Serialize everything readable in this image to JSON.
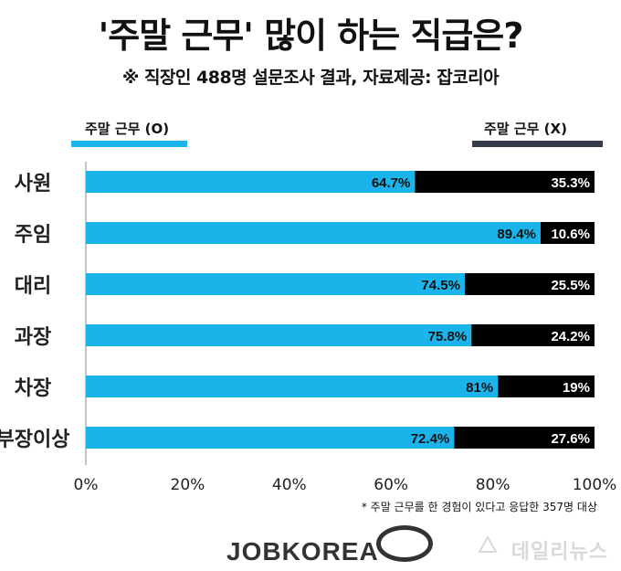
{
  "title": "'주말 근무' 많이 하는 직급은?",
  "subtitle": "※ 직장인 488명 설문조사 결과, 자료제공: 잡코리아",
  "legend": {
    "left_label": "주말 근무 (O)",
    "right_label": "주말 근무 (X)"
  },
  "colors": {
    "o": "#1ab4ea",
    "x": "#000000",
    "legend_x": "#353b48"
  },
  "chart_data": {
    "type": "bar",
    "stacked": true,
    "orientation": "horizontal",
    "categories": [
      "사원",
      "주임",
      "대리",
      "과장",
      "차장",
      "부장이상"
    ],
    "series": [
      {
        "name": "주말 근무 (O)",
        "values": [
          64.7,
          89.4,
          74.5,
          75.8,
          81,
          72.4
        ],
        "labels": [
          "64.7%",
          "89.4%",
          "74.5%",
          "75.8%",
          "81%",
          "72.4%"
        ]
      },
      {
        "name": "주말 근무 (X)",
        "values": [
          35.3,
          10.6,
          25.5,
          24.2,
          19,
          27.6
        ],
        "labels": [
          "35.3%",
          "10.6%",
          "25.5%",
          "24.2%",
          "19%",
          "27.6%"
        ]
      }
    ],
    "xlim": [
      0,
      100
    ],
    "xticks": [
      "0%",
      "20%",
      "40%",
      "60%",
      "80%",
      "100%"
    ]
  },
  "footnote": "* 주말 근무를 한 경험이 있다고 응답한 357명 대상",
  "logo": "JOBKOREA",
  "watermark": "데일리뉴스"
}
